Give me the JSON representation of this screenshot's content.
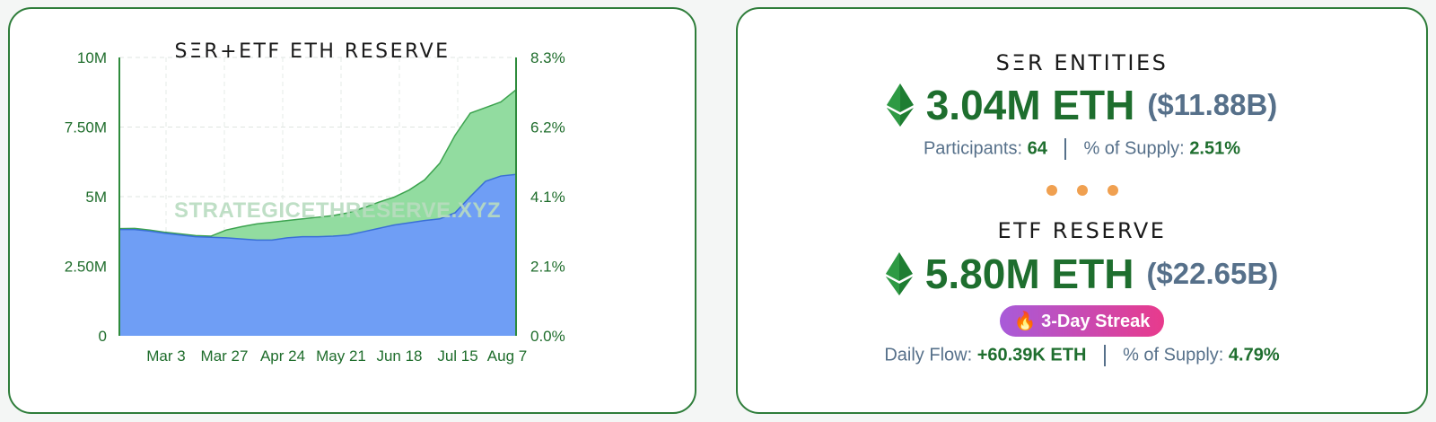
{
  "chart_data": {
    "type": "area",
    "title": "SΞR+ETF ETH RESERVE",
    "watermark": "STRATEGICETHRESERVE.XYZ",
    "x_ticks": [
      "Mar 3",
      "Mar 27",
      "Apr 24",
      "May 21",
      "Jun 18",
      "Jul 15",
      "Aug 7"
    ],
    "y_left_ticks": [
      "10M",
      "7.50M",
      "5M",
      "2.50M",
      "0"
    ],
    "y_right_ticks": [
      "8.3%",
      "6.2%",
      "4.1%",
      "2.1%",
      "0.0%"
    ],
    "ylim": [
      0,
      10000000
    ],
    "grid": true,
    "series": [
      {
        "color": "#6f9ef5",
        "x": [
          "Feb 14",
          "Feb 25",
          "Mar 3",
          "Mar 10",
          "Mar 17",
          "Mar 24",
          "Mar 27",
          "Apr 3",
          "Apr 10",
          "Apr 17",
          "Apr 24",
          "May 1",
          "May 8",
          "May 15",
          "May 21",
          "May 28",
          "Jun 4",
          "Jun 11",
          "Jun 18",
          "Jun 25",
          "Jul 2",
          "Jul 8",
          "Jul 15",
          "Jul 22",
          "Jul 29",
          "Aug 3",
          "Aug 7"
        ],
        "values": [
          3.82,
          3.82,
          3.76,
          3.68,
          3.62,
          3.56,
          3.54,
          3.52,
          3.48,
          3.44,
          3.44,
          3.52,
          3.56,
          3.56,
          3.58,
          3.62,
          3.74,
          3.86,
          3.98,
          4.06,
          4.14,
          4.2,
          4.42,
          5.0,
          5.55,
          5.74,
          5.8
        ]
      },
      {
        "color": "#92dca0",
        "x": [
          "Feb 14",
          "Feb 25",
          "Mar 3",
          "Mar 10",
          "Mar 17",
          "Mar 24",
          "Mar 27",
          "Apr 3",
          "Apr 10",
          "Apr 17",
          "Apr 24",
          "May 1",
          "May 8",
          "May 15",
          "May 21",
          "May 28",
          "Jun 4",
          "Jun 11",
          "Jun 18",
          "Jun 25",
          "Jul 2",
          "Jul 8",
          "Jul 15",
          "Jul 22",
          "Jul 29",
          "Aug 3",
          "Aug 7"
        ],
        "values": [
          3.85,
          3.86,
          3.8,
          3.72,
          3.66,
          3.6,
          3.58,
          3.8,
          3.92,
          4.02,
          4.08,
          4.14,
          4.2,
          4.26,
          4.32,
          4.42,
          4.6,
          4.8,
          4.98,
          5.24,
          5.6,
          6.2,
          7.2,
          8.0,
          8.2,
          8.4,
          8.84
        ]
      }
    ]
  },
  "ser": {
    "title": "SΞR ENTITIES",
    "eth": "3.04M ETH",
    "usd": "($11.88B)",
    "participants_label": "Participants:",
    "participants_value": "64",
    "supply_label": "% of Supply:",
    "supply_value": "2.51%"
  },
  "etf": {
    "title": "ETF RESERVE",
    "eth": "5.80M ETH",
    "usd": "($22.65B)",
    "streak": "🔥 3-Day Streak",
    "flow_label": "Daily Flow:",
    "flow_value": "+60.39K ETH",
    "supply_label": "% of Supply:",
    "supply_value": "4.79%"
  },
  "colors": {
    "accent_green": "#1e6e2e",
    "border_green": "#2e7d3a",
    "muted_blue": "#56708a",
    "dots_orange": "#f0a050"
  },
  "icons": {
    "eth": "ethereum-icon",
    "fire": "fire-icon"
  }
}
